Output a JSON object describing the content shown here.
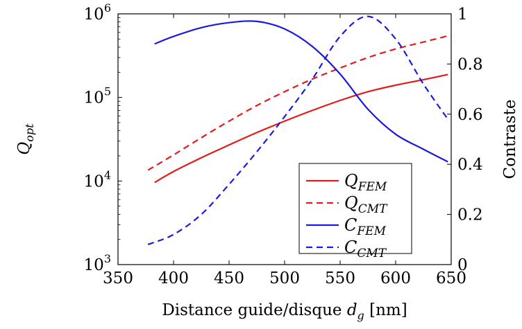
{
  "chart_data": {
    "type": "line",
    "xlabel": "Distance guide/disque d_g [nm]",
    "ylabel_left": "Q_opt",
    "ylabel_right": "Contraste",
    "xlim": [
      350,
      650
    ],
    "ylim_left": [
      1000,
      1000000
    ],
    "yscale_left": "log",
    "ylim_right": [
      0,
      1
    ],
    "x_ticks": [
      "350",
      "400",
      "450",
      "500",
      "550",
      "600",
      "650"
    ],
    "y_left_ticks": [
      {
        "value": 1000,
        "base": "10",
        "exp": "3"
      },
      {
        "value": 10000,
        "base": "10",
        "exp": "4"
      },
      {
        "value": 100000,
        "base": "10",
        "exp": "5"
      },
      {
        "value": 1000000,
        "base": "10",
        "exp": "6"
      }
    ],
    "y_right_ticks": [
      "0",
      "0.2",
      "0.4",
      "0.6",
      "0.8",
      "1"
    ],
    "legend_position": "bottom-right",
    "series": [
      {
        "name": "Q_FEM",
        "name_main": "Q",
        "name_sub": "FEM",
        "axis": "left",
        "color": "#e41a1a",
        "dash": "solid",
        "x": [
          383,
          400,
          425,
          450,
          475,
          500,
          525,
          550,
          575,
          600,
          625,
          647
        ],
        "y": [
          9600,
          13000,
          19000,
          27000,
          38000,
          52000,
          70000,
          92000,
          117000,
          140000,
          163000,
          188000
        ]
      },
      {
        "name": "Q_CMT",
        "name_main": "Q",
        "name_sub": "CMT",
        "axis": "left",
        "color": "#e41a1a",
        "dash": "dashed",
        "x": [
          377,
          400,
          425,
          450,
          475,
          500,
          525,
          550,
          575,
          600,
          625,
          647
        ],
        "y": [
          13500,
          20500,
          33000,
          52000,
          80000,
          117000,
          166000,
          225000,
          300000,
          380000,
          460000,
          545000
        ]
      },
      {
        "name": "C_FEM",
        "name_main": "C",
        "name_sub": "FEM",
        "axis": "right",
        "color": "#1a1adf",
        "dash": "solid",
        "x": [
          383,
          400,
          425,
          450,
          475,
          500,
          525,
          550,
          575,
          600,
          625,
          647
        ],
        "y": [
          0.88,
          0.91,
          0.945,
          0.965,
          0.97,
          0.94,
          0.87,
          0.76,
          0.62,
          0.52,
          0.46,
          0.41
        ]
      },
      {
        "name": "C_CMT",
        "name_main": "C",
        "name_sub": "CMT",
        "axis": "right",
        "color": "#1a1adf",
        "dash": "dashed",
        "x": [
          377,
          400,
          425,
          450,
          475,
          500,
          525,
          550,
          575,
          600,
          625,
          647
        ],
        "y": [
          0.08,
          0.12,
          0.2,
          0.32,
          0.45,
          0.59,
          0.74,
          0.91,
          0.99,
          0.9,
          0.72,
          0.58
        ]
      }
    ]
  }
}
